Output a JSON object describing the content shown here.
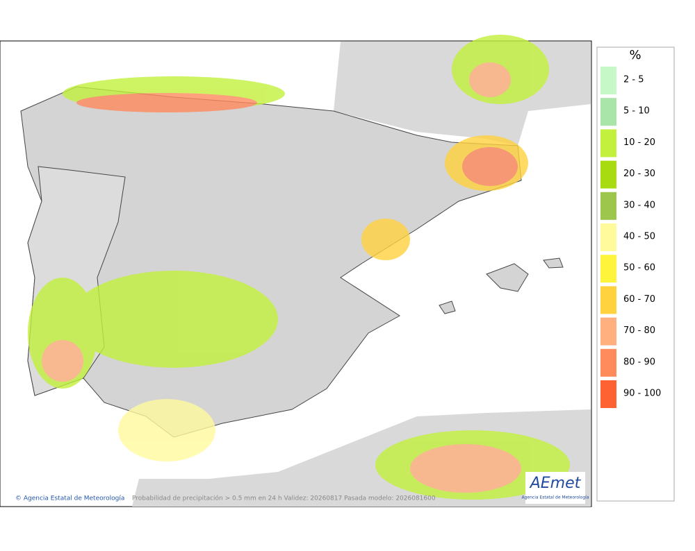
{
  "map": {
    "footer": {
      "credit": "© Agencia Estatal de Meteorología",
      "caption": "Probabilidad de precipitación > 0.5 mm en 24 h Validez: 20260817 Pasada modelo: 2026081600"
    },
    "logo": {
      "title": "AEmet",
      "subtitle": "Agencia Estatal de Meteorología"
    },
    "legend": {
      "title": "%",
      "items": [
        {
          "label": "2 - 5",
          "color": "#c6f7c6"
        },
        {
          "label": "5 - 10",
          "color": "#a9e4a9"
        },
        {
          "label": "10 - 20",
          "color": "#c2f03c"
        },
        {
          "label": "20 - 30",
          "color": "#a8dc10"
        },
        {
          "label": "30 - 40",
          "color": "#9cc64c"
        },
        {
          "label": "40 - 50",
          "color": "#fffa9c"
        },
        {
          "label": "50 - 60",
          "color": "#fff43c"
        },
        {
          "label": "60 - 70",
          "color": "#ffd23e"
        },
        {
          "label": "70 - 80",
          "color": "#ffb07e"
        },
        {
          "label": "80 - 90",
          "color": "#ff8a5c"
        },
        {
          "label": "90 - 100",
          "color": "#ff6232"
        }
      ]
    }
  }
}
